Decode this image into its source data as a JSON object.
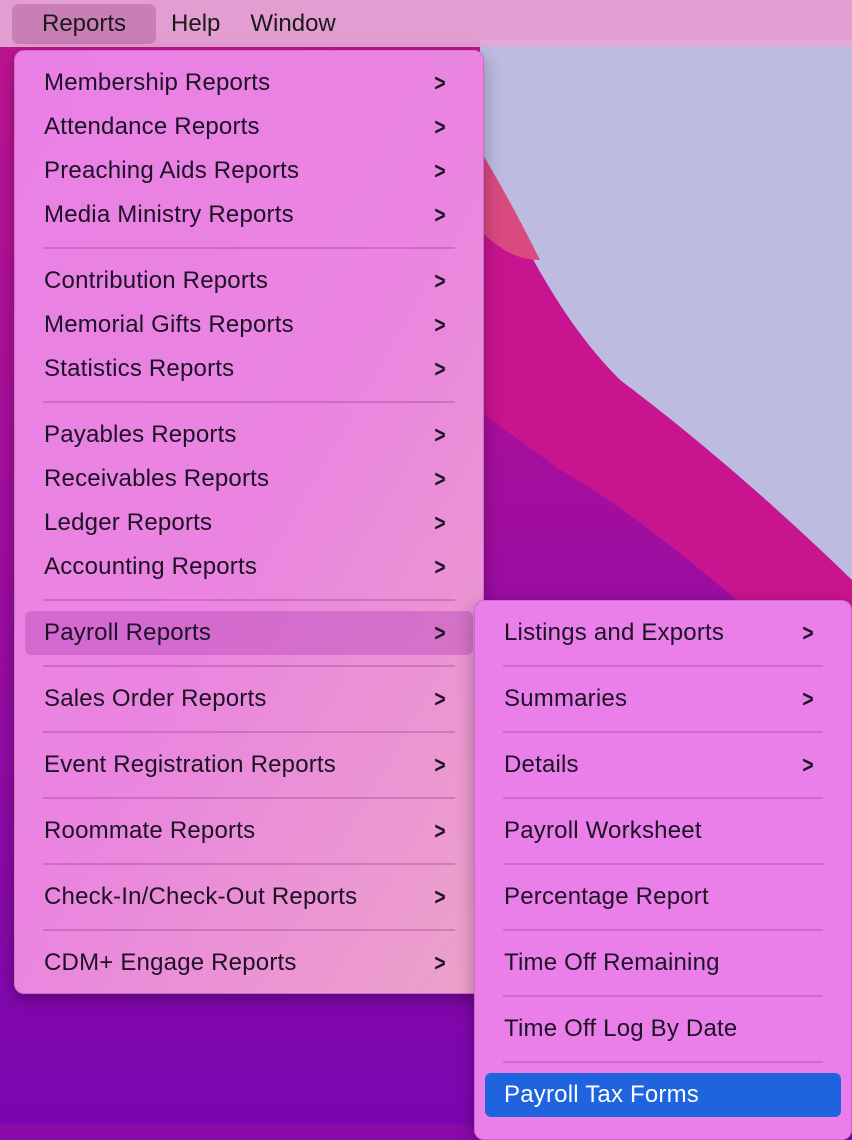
{
  "menubar": {
    "items": [
      {
        "label": "Reports",
        "active": true
      },
      {
        "label": "Help"
      },
      {
        "label": "Window"
      }
    ]
  },
  "reports_menu": {
    "groups": [
      [
        "Membership Reports",
        "Attendance Reports",
        "Preaching Aids Reports",
        "Media Ministry Reports"
      ],
      [
        "Contribution Reports",
        "Memorial Gifts Reports",
        "Statistics Reports"
      ],
      [
        "Payables Reports",
        "Receivables Reports",
        "Ledger Reports",
        "Accounting Reports"
      ],
      [
        "Payroll Reports"
      ],
      [
        "Sales Order Reports"
      ],
      [
        "Event Registration Reports"
      ],
      [
        "Roommate Reports"
      ],
      [
        "Check-In/Check-Out Reports"
      ],
      [
        "CDM+ Engage Reports"
      ]
    ],
    "highlighted": "Payroll Reports"
  },
  "payroll_submenu": {
    "items": [
      {
        "label": "Listings and Exports",
        "submenu": true
      },
      {
        "label": "Summaries",
        "submenu": true
      },
      {
        "label": "Details",
        "submenu": true
      },
      {
        "label": "Payroll Worksheet"
      },
      {
        "label": "Percentage Report"
      },
      {
        "label": "Time Off Remaining"
      },
      {
        "label": "Time Off Log By Date"
      },
      {
        "label": "Payroll Tax Forms",
        "selected": true
      }
    ]
  },
  "colors": {
    "selection": "#1f63df",
    "menu_bg": "#ea80e6"
  }
}
